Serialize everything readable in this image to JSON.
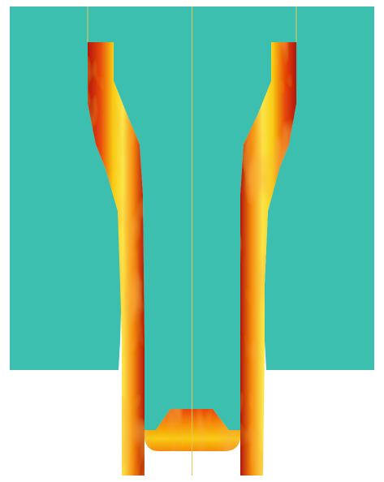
{
  "colors": {
    "background": "#ffffff",
    "mold": "#3dbfb0",
    "guide_line": "#e3c95a",
    "heat_dark": "#b3160e",
    "heat_mid": "#e8470f",
    "heat_orange": "#f58a10",
    "heat_yellow": "#f8cc12",
    "heat_light": "#fbe54a"
  },
  "regions": {
    "mold_left": "mold-left-block",
    "mold_center": "mold-center-core",
    "mold_right": "mold-right-block",
    "wall_left": "hot-wall-left",
    "wall_right": "hot-wall-right",
    "bottom_plug": "hot-bottom-plug"
  }
}
